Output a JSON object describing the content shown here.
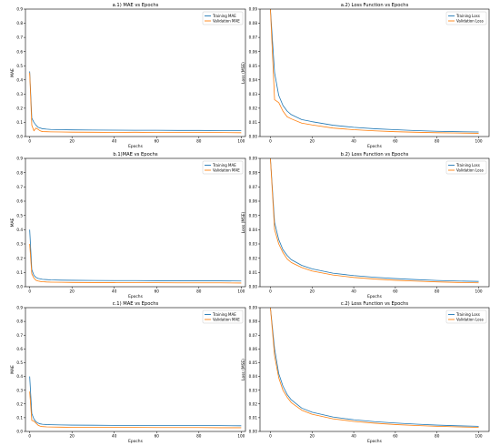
{
  "colors": {
    "training": "#1f77b4",
    "validation": "#ff7f0e"
  },
  "chart_data": [
    {
      "id": "a1",
      "type": "line",
      "title": "a.1) MAE vs Epochs",
      "xlabel": "Epochs",
      "ylabel": "MAE",
      "xlim": [
        -2,
        102
      ],
      "ylim": [
        0,
        0.9
      ],
      "xticks": [
        0,
        20,
        40,
        60,
        80,
        100
      ],
      "yticks": [
        0.0,
        0.1,
        0.2,
        0.3,
        0.4,
        0.5,
        0.6,
        0.7,
        0.8,
        0.9
      ],
      "legend": "top-right",
      "series": [
        {
          "name": "Training MAE",
          "color": "#1f77b4",
          "x": [
            0,
            1,
            2,
            3,
            4,
            5,
            6,
            8,
            10,
            15,
            20,
            30,
            40,
            50,
            60,
            70,
            80,
            90,
            100
          ],
          "y": [
            0.46,
            0.13,
            0.1,
            0.08,
            0.065,
            0.06,
            0.055,
            0.052,
            0.05,
            0.048,
            0.047,
            0.046,
            0.045,
            0.044,
            0.044,
            0.043,
            0.043,
            0.042,
            0.042
          ]
        },
        {
          "name": "Validation MAE",
          "color": "#ff7f0e",
          "x": [
            0,
            1,
            2,
            3,
            4,
            5,
            6,
            8,
            10,
            15,
            20,
            30,
            40,
            50,
            60,
            70,
            80,
            90,
            100
          ],
          "y": [
            0.45,
            0.08,
            0.04,
            0.06,
            0.05,
            0.04,
            0.035,
            0.034,
            0.033,
            0.032,
            0.031,
            0.03,
            0.029,
            0.03,
            0.028,
            0.029,
            0.028,
            0.028,
            0.027
          ]
        }
      ]
    },
    {
      "id": "a2",
      "type": "line",
      "title": "a.2) Loss Function vs Epochs",
      "xlabel": "Epochs",
      "ylabel": "Loss (MSE)",
      "xlim": [
        -5,
        105
      ],
      "ylim": [
        0,
        0.09
      ],
      "xticks": [
        0,
        20,
        40,
        60,
        80,
        100
      ],
      "yticks": [
        0.0,
        0.01,
        0.02,
        0.03,
        0.04,
        0.05,
        0.06,
        0.07,
        0.08,
        0.09
      ],
      "legend": "top-right",
      "series": [
        {
          "name": "Training Loss",
          "color": "#1f77b4",
          "x": [
            0,
            2,
            4,
            6,
            8,
            10,
            15,
            20,
            30,
            40,
            50,
            60,
            70,
            80,
            90,
            100
          ],
          "y": [
            0.09,
            0.045,
            0.029,
            0.022,
            0.018,
            0.0155,
            0.012,
            0.0105,
            0.008,
            0.0065,
            0.0055,
            0.0048,
            0.0042,
            0.0037,
            0.0034,
            0.0032
          ]
        },
        {
          "name": "Validation Loss",
          "color": "#ff7f0e",
          "x": [
            0,
            2,
            4,
            6,
            8,
            10,
            15,
            20,
            30,
            40,
            50,
            60,
            70,
            80,
            90,
            100
          ],
          "y": [
            0.09,
            0.026,
            0.024,
            0.018,
            0.014,
            0.0125,
            0.0095,
            0.0082,
            0.006,
            0.0048,
            0.004,
            0.0034,
            0.003,
            0.0027,
            0.0025,
            0.0023
          ]
        }
      ]
    },
    {
      "id": "b1",
      "type": "line",
      "title": "b.1)MAE vs Epochs",
      "xlabel": "Epochs",
      "ylabel": "MAE",
      "xlim": [
        -2,
        102
      ],
      "ylim": [
        0,
        0.9
      ],
      "xticks": [
        0,
        20,
        40,
        60,
        80,
        100
      ],
      "yticks": [
        0.0,
        0.1,
        0.2,
        0.3,
        0.4,
        0.5,
        0.6,
        0.7,
        0.8,
        0.9
      ],
      "legend": "top-right",
      "series": [
        {
          "name": "Training MAE",
          "color": "#1f77b4",
          "x": [
            0,
            1,
            2,
            3,
            4,
            5,
            6,
            8,
            10,
            15,
            20,
            30,
            40,
            50,
            60,
            70,
            80,
            90,
            100
          ],
          "y": [
            0.4,
            0.12,
            0.08,
            0.065,
            0.058,
            0.055,
            0.052,
            0.05,
            0.048,
            0.046,
            0.045,
            0.044,
            0.043,
            0.043,
            0.042,
            0.042,
            0.041,
            0.041,
            0.04
          ]
        },
        {
          "name": "Validation MAE",
          "color": "#ff7f0e",
          "x": [
            0,
            1,
            2,
            3,
            4,
            5,
            6,
            8,
            10,
            15,
            20,
            30,
            40,
            50,
            60,
            70,
            80,
            90,
            100
          ],
          "y": [
            0.3,
            0.09,
            0.06,
            0.045,
            0.04,
            0.037,
            0.035,
            0.033,
            0.032,
            0.031,
            0.03,
            0.029,
            0.029,
            0.028,
            0.028,
            0.027,
            0.027,
            0.027,
            0.026
          ]
        }
      ]
    },
    {
      "id": "b2",
      "type": "line",
      "title": "b.2) Loss Function vs Epochs",
      "xlabel": "Epochs",
      "ylabel": "Loss (MSE)",
      "xlim": [
        -5,
        105
      ],
      "ylim": [
        0,
        0.09
      ],
      "xticks": [
        0,
        20,
        40,
        60,
        80,
        100
      ],
      "yticks": [
        0.0,
        0.01,
        0.02,
        0.03,
        0.04,
        0.05,
        0.06,
        0.07,
        0.08,
        0.09
      ],
      "legend": "top-right",
      "series": [
        {
          "name": "Training Loss",
          "color": "#1f77b4",
          "x": [
            0,
            2,
            4,
            6,
            8,
            10,
            15,
            20,
            30,
            40,
            50,
            60,
            70,
            80,
            90,
            100
          ],
          "y": [
            0.09,
            0.045,
            0.033,
            0.026,
            0.022,
            0.019,
            0.015,
            0.0125,
            0.0095,
            0.0078,
            0.0066,
            0.0057,
            0.005,
            0.0044,
            0.004,
            0.0037
          ]
        },
        {
          "name": "Validation Loss",
          "color": "#ff7f0e",
          "x": [
            0,
            2,
            4,
            6,
            8,
            10,
            15,
            20,
            30,
            40,
            50,
            60,
            70,
            80,
            90,
            100
          ],
          "y": [
            0.09,
            0.04,
            0.03,
            0.024,
            0.0195,
            0.017,
            0.0135,
            0.011,
            0.0082,
            0.0065,
            0.0054,
            0.0045,
            0.0039,
            0.0034,
            0.003,
            0.0027
          ]
        }
      ]
    },
    {
      "id": "c1",
      "type": "line",
      "title": "c.1) MAE vs Epochs",
      "xlabel": "Epochs",
      "ylabel": "MAE",
      "xlim": [
        -2,
        102
      ],
      "ylim": [
        0,
        0.9
      ],
      "xticks": [
        0,
        20,
        40,
        60,
        80,
        100
      ],
      "yticks": [
        0.0,
        0.1,
        0.2,
        0.3,
        0.4,
        0.5,
        0.6,
        0.7,
        0.8,
        0.9
      ],
      "legend": "top-right",
      "series": [
        {
          "name": "Training MAE",
          "color": "#1f77b4",
          "x": [
            0,
            1,
            2,
            3,
            4,
            5,
            6,
            8,
            10,
            15,
            20,
            30,
            40,
            50,
            60,
            70,
            80,
            90,
            100
          ],
          "y": [
            0.4,
            0.13,
            0.09,
            0.07,
            0.06,
            0.055,
            0.052,
            0.05,
            0.049,
            0.047,
            0.046,
            0.045,
            0.044,
            0.044,
            0.043,
            0.043,
            0.042,
            0.042,
            0.041
          ]
        },
        {
          "name": "Validation MAE",
          "color": "#ff7f0e",
          "x": [
            0,
            1,
            2,
            3,
            4,
            5,
            6,
            8,
            10,
            15,
            20,
            30,
            40,
            50,
            60,
            70,
            80,
            90,
            100
          ],
          "y": [
            0.29,
            0.08,
            0.075,
            0.06,
            0.045,
            0.038,
            0.035,
            0.033,
            0.032,
            0.031,
            0.03,
            0.03,
            0.029,
            0.029,
            0.028,
            0.028,
            0.028,
            0.027,
            0.027
          ]
        }
      ]
    },
    {
      "id": "c2",
      "type": "line",
      "title": "c.2) Loss Function vs Epochs",
      "xlabel": "Epochs",
      "ylabel": "Loss (MSE)",
      "xlim": [
        -5,
        105
      ],
      "ylim": [
        0,
        0.09
      ],
      "xticks": [
        0,
        20,
        40,
        60,
        80,
        100
      ],
      "yticks": [
        0.0,
        0.01,
        0.02,
        0.03,
        0.04,
        0.05,
        0.06,
        0.07,
        0.08,
        0.09
      ],
      "legend": "top-right",
      "series": [
        {
          "name": "Training Loss",
          "color": "#1f77b4",
          "x": [
            0,
            2,
            4,
            6,
            8,
            10,
            15,
            20,
            30,
            40,
            50,
            60,
            70,
            80,
            90,
            100
          ],
          "y": [
            0.09,
            0.06,
            0.042,
            0.033,
            0.027,
            0.023,
            0.017,
            0.014,
            0.0105,
            0.0085,
            0.0071,
            0.0061,
            0.0053,
            0.0046,
            0.0041,
            0.0037
          ]
        },
        {
          "name": "Validation Loss",
          "color": "#ff7f0e",
          "x": [
            0,
            2,
            4,
            6,
            8,
            10,
            15,
            20,
            30,
            40,
            50,
            60,
            70,
            80,
            90,
            100
          ],
          "y": [
            0.09,
            0.055,
            0.039,
            0.03,
            0.025,
            0.021,
            0.0155,
            0.0125,
            0.0092,
            0.0073,
            0.006,
            0.005,
            0.0043,
            0.0037,
            0.0033,
            0.003
          ]
        }
      ]
    }
  ]
}
